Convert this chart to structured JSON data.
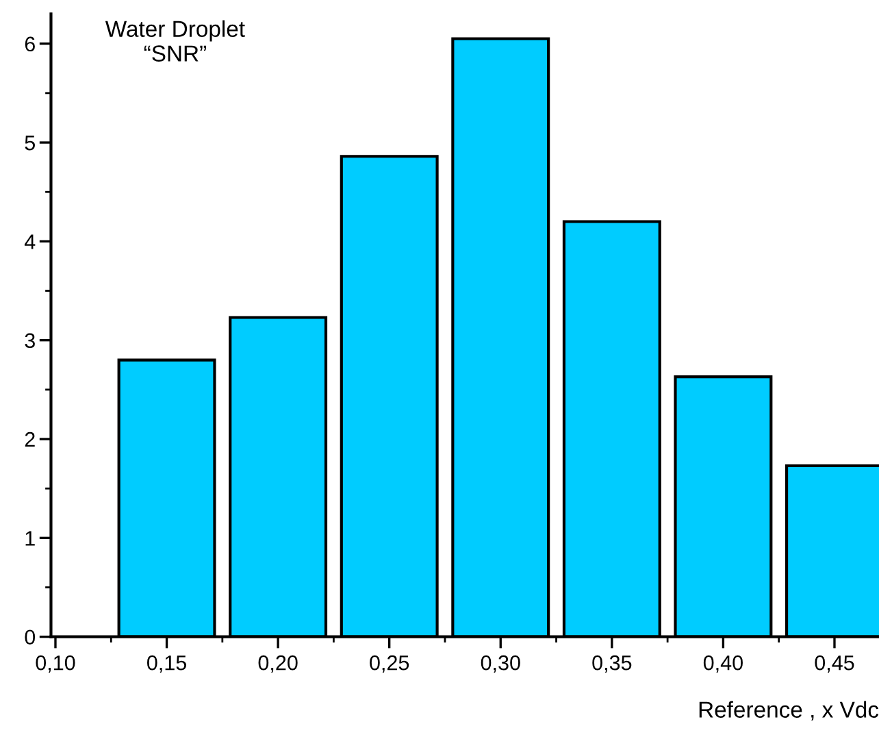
{
  "chart_data": {
    "type": "bar",
    "xlabel": "Reference , x Vdc",
    "annotations": [
      "Water Droplet\n“SNR”"
    ],
    "x": [
      0.15,
      0.2,
      0.25,
      0.3,
      0.35,
      0.4,
      0.45
    ],
    "series": [
      {
        "color": "#00ccff",
        "values": [
          2.8,
          3.23,
          4.86,
          6.05,
          4.2,
          2.63,
          1.73
        ]
      }
    ],
    "xlim": [
      0.098,
      0.47
    ],
    "ylim": [
      0,
      6.3
    ],
    "xticks": [
      {
        "value": 0.1,
        "label": "0,10"
      },
      {
        "value": 0.125,
        "label": null
      },
      {
        "value": 0.15,
        "label": "0,15"
      },
      {
        "value": 0.175,
        "label": null
      },
      {
        "value": 0.2,
        "label": "0,20"
      },
      {
        "value": 0.225,
        "label": null
      },
      {
        "value": 0.25,
        "label": "0,25"
      },
      {
        "value": 0.275,
        "label": null
      },
      {
        "value": 0.3,
        "label": "0,30"
      },
      {
        "value": 0.325,
        "label": null
      },
      {
        "value": 0.35,
        "label": "0,35"
      },
      {
        "value": 0.375,
        "label": null
      },
      {
        "value": 0.4,
        "label": "0,40"
      },
      {
        "value": 0.425,
        "label": null
      },
      {
        "value": 0.45,
        "label": "0,45"
      }
    ],
    "yticks": [
      0,
      {
        "value": 0.5,
        "label": null
      },
      1,
      {
        "value": 1.5,
        "label": null
      },
      2,
      {
        "value": 2.5,
        "label": null
      },
      3,
      {
        "value": 3.5,
        "label": null
      },
      4,
      {
        "value": 4.5,
        "label": null
      },
      5,
      {
        "value": 5.5,
        "label": null
      },
      6
    ],
    "grid": false
  }
}
